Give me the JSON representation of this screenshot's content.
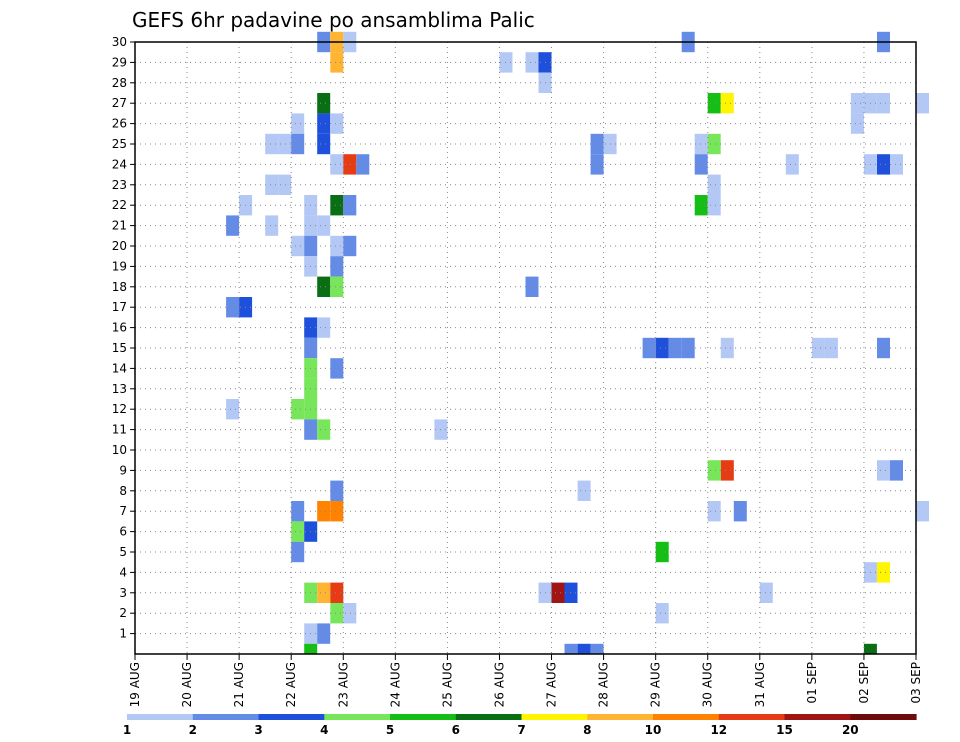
{
  "chart_data": {
    "type": "heatmap",
    "title": "GEFS 6hr padavine po ansamblima Palic",
    "xlabel": "",
    "ylabel": "",
    "x_tick_labels": [
      "19 AUG",
      "20 AUG",
      "21 AUG",
      "22 AUG",
      "23 AUG",
      "24 AUG",
      "25 AUG",
      "26 AUG",
      "27 AUG",
      "28 AUG",
      "29 AUG",
      "30 AUG",
      "31 AUG",
      "01 SEP",
      "02 SEP",
      "03 SEP"
    ],
    "y_tick_labels": [
      "1",
      "2",
      "3",
      "4",
      "5",
      "6",
      "7",
      "8",
      "9",
      "10",
      "11",
      "12",
      "13",
      "14",
      "15",
      "16",
      "17",
      "18",
      "19",
      "20",
      "21",
      "22",
      "23",
      "24",
      "25",
      "26",
      "27",
      "28",
      "29",
      "30"
    ],
    "ylim": [
      0,
      30
    ],
    "grid": true,
    "colorbar": {
      "labels": [
        "1",
        "2",
        "3",
        "4",
        "5",
        "6",
        "7",
        "8",
        "10",
        "12",
        "15",
        "20"
      ],
      "colors": [
        "#b4c8f5",
        "#648ce6",
        "#1e50dc",
        "#78e65a",
        "#14be14",
        "#0a6e14",
        "#fff500",
        "#ffb432",
        "#ff8200",
        "#e63c14",
        "#a01414",
        "#6e0a0a"
      ]
    },
    "cells": [
      {
        "member": 30,
        "time": "22 AUG 12Z",
        "value": 2
      },
      {
        "member": 30,
        "time": "22 AUG 18Z",
        "value": 8
      },
      {
        "member": 30,
        "time": "23 AUG 00Z",
        "value": 1
      },
      {
        "member": 30,
        "time": "29 AUG 12Z",
        "value": 2
      },
      {
        "member": 30,
        "time": "02 SEP 06Z",
        "value": 2
      },
      {
        "member": 29,
        "time": "22 AUG 18Z",
        "value": 8
      },
      {
        "member": 29,
        "time": "26 AUG 00Z",
        "value": 1
      },
      {
        "member": 29,
        "time": "26 AUG 12Z",
        "value": 1
      },
      {
        "member": 29,
        "time": "26 AUG 18Z",
        "value": 3
      },
      {
        "member": 28,
        "time": "26 AUG 18Z",
        "value": 1
      },
      {
        "member": 27,
        "time": "22 AUG 12Z",
        "value": 6
      },
      {
        "member": 27,
        "time": "30 AUG 00Z",
        "value": 5
      },
      {
        "member": 27,
        "time": "30 AUG 06Z",
        "value": 7
      },
      {
        "member": 27,
        "time": "01 SEP 18Z",
        "value": 1
      },
      {
        "member": 27,
        "time": "02 SEP 00Z",
        "value": 1
      },
      {
        "member": 27,
        "time": "02 SEP 06Z",
        "value": 1
      },
      {
        "member": 27,
        "time": "03 SEP 00Z",
        "value": 1
      },
      {
        "member": 26,
        "time": "22 AUG 00Z",
        "value": 1
      },
      {
        "member": 26,
        "time": "22 AUG 12Z",
        "value": 3
      },
      {
        "member": 26,
        "time": "22 AUG 18Z",
        "value": 1
      },
      {
        "member": 26,
        "time": "01 SEP 18Z",
        "value": 1
      },
      {
        "member": 25,
        "time": "21 AUG 12Z",
        "value": 1
      },
      {
        "member": 25,
        "time": "21 AUG 18Z",
        "value": 1
      },
      {
        "member": 25,
        "time": "22 AUG 00Z",
        "value": 2
      },
      {
        "member": 25,
        "time": "22 AUG 12Z",
        "value": 3
      },
      {
        "member": 25,
        "time": "27 AUG 18Z",
        "value": 2
      },
      {
        "member": 25,
        "time": "28 AUG 00Z",
        "value": 1
      },
      {
        "member": 25,
        "time": "29 AUG 18Z",
        "value": 1
      },
      {
        "member": 25,
        "time": "29 AUG 18Z+6",
        "value": 4
      },
      {
        "member": 24,
        "time": "22 AUG 18Z",
        "value": 1
      },
      {
        "member": 24,
        "time": "23 AUG 00Z",
        "value": 12
      },
      {
        "member": 24,
        "time": "23 AUG 06Z",
        "value": 2
      },
      {
        "member": 24,
        "time": "27 AUG 18Z",
        "value": 2
      },
      {
        "member": 24,
        "time": "29 AUG 18Z",
        "value": 2
      },
      {
        "member": 24,
        "time": "31 AUG 12Z",
        "value": 1
      },
      {
        "member": 24,
        "time": "02 SEP 00Z",
        "value": 1
      },
      {
        "member": 24,
        "time": "02 SEP 06Z",
        "value": 3
      },
      {
        "member": 24,
        "time": "02 SEP 12Z",
        "value": 1
      },
      {
        "member": 23,
        "time": "21 AUG 12Z",
        "value": 1
      },
      {
        "member": 23,
        "time": "21 AUG 18Z",
        "value": 1
      },
      {
        "member": 23,
        "time": "30 AUG 00Z",
        "value": 1
      },
      {
        "member": 22,
        "time": "21 AUG 00Z",
        "value": 1
      },
      {
        "member": 22,
        "time": "22 AUG 06Z",
        "value": 1
      },
      {
        "member": 22,
        "time": "22 AUG 18Z",
        "value": 6
      },
      {
        "member": 22,
        "time": "23 AUG 00Z",
        "value": 2
      },
      {
        "member": 22,
        "time": "29 AUG 18Z",
        "value": 5
      },
      {
        "member": 22,
        "time": "30 AUG 00Z",
        "value": 1
      },
      {
        "member": 21,
        "time": "20 AUG 18Z",
        "value": 2
      },
      {
        "member": 21,
        "time": "21 AUG 12Z",
        "value": 1
      },
      {
        "member": 21,
        "time": "22 AUG 06Z",
        "value": 1
      },
      {
        "member": 21,
        "time": "22 AUG 12Z",
        "value": 1
      },
      {
        "member": 20,
        "time": "22 AUG 00Z",
        "value": 1
      },
      {
        "member": 20,
        "time": "22 AUG 06Z",
        "value": 2
      },
      {
        "member": 20,
        "time": "22 AUG 18Z",
        "value": 1
      },
      {
        "member": 20,
        "time": "23 AUG 00Z",
        "value": 2
      },
      {
        "member": 19,
        "time": "22 AUG 06Z",
        "value": 1
      },
      {
        "member": 19,
        "time": "22 AUG 18Z",
        "value": 2
      },
      {
        "member": 18,
        "time": "22 AUG 12Z",
        "value": 6
      },
      {
        "member": 18,
        "time": "22 AUG 18Z",
        "value": 4
      },
      {
        "member": 18,
        "time": "26 AUG 12Z",
        "value": 2
      },
      {
        "member": 17,
        "time": "20 AUG 18Z",
        "value": 2
      },
      {
        "member": 17,
        "time": "21 AUG 00Z",
        "value": 3
      },
      {
        "member": 16,
        "time": "22 AUG 06Z",
        "value": 3
      },
      {
        "member": 16,
        "time": "22 AUG 12Z",
        "value": 1
      },
      {
        "member": 15,
        "time": "22 AUG 06Z",
        "value": 2
      },
      {
        "member": 15,
        "time": "28 AUG 18Z",
        "value": 2
      },
      {
        "member": 15,
        "time": "29 AUG 00Z",
        "value": 3
      },
      {
        "member": 15,
        "time": "29 AUG 06Z",
        "value": 2
      },
      {
        "member": 15,
        "time": "29 AUG 12Z",
        "value": 2
      },
      {
        "member": 15,
        "time": "30 AUG 06Z",
        "value": 1
      },
      {
        "member": 15,
        "time": "01 SEP 00Z",
        "value": 1
      },
      {
        "member": 15,
        "time": "01 SEP 06Z",
        "value": 1
      },
      {
        "member": 15,
        "time": "02 SEP 06Z",
        "value": 2
      },
      {
        "member": 14,
        "time": "22 AUG 06Z",
        "value": 4
      },
      {
        "member": 14,
        "time": "22 AUG 18Z",
        "value": 2
      },
      {
        "member": 13,
        "time": "22 AUG 06Z",
        "value": 4
      },
      {
        "member": 12,
        "time": "20 AUG 18Z",
        "value": 1
      },
      {
        "member": 12,
        "time": "22 AUG 00Z",
        "value": 4
      },
      {
        "member": 12,
        "time": "22 AUG 06Z",
        "value": 4
      },
      {
        "member": 11,
        "time": "22 AUG 06Z",
        "value": 2
      },
      {
        "member": 11,
        "time": "22 AUG 12Z",
        "value": 4
      },
      {
        "member": 11,
        "time": "24 AUG 18Z",
        "value": 1
      },
      {
        "member": 9,
        "time": "30 AUG 00Z",
        "value": 4
      },
      {
        "member": 9,
        "time": "30 AUG 06Z",
        "value": 12
      },
      {
        "member": 9,
        "time": "02 SEP 06Z",
        "value": 1
      },
      {
        "member": 9,
        "time": "02 SEP 12Z",
        "value": 2
      },
      {
        "member": 8,
        "time": "22 AUG 18Z",
        "value": 2
      },
      {
        "member": 8,
        "time": "27 AUG 12Z",
        "value": 1
      },
      {
        "member": 7,
        "time": "22 AUG 00Z",
        "value": 2
      },
      {
        "member": 7,
        "time": "22 AUG 12Z",
        "value": 10
      },
      {
        "member": 7,
        "time": "22 AUG 18Z",
        "value": 10
      },
      {
        "member": 7,
        "time": "30 AUG 00Z",
        "value": 1
      },
      {
        "member": 7,
        "time": "30 AUG 12Z",
        "value": 2
      },
      {
        "member": 7,
        "time": "03 SEP 00Z",
        "value": 1
      },
      {
        "member": 6,
        "time": "22 AUG 00Z",
        "value": 4
      },
      {
        "member": 6,
        "time": "22 AUG 06Z",
        "value": 3
      },
      {
        "member": 5,
        "time": "22 AUG 00Z",
        "value": 2
      },
      {
        "member": 5,
        "time": "29 AUG 00Z",
        "value": 5
      },
      {
        "member": 4,
        "time": "02 SEP 00Z",
        "value": 1
      },
      {
        "member": 4,
        "time": "02 SEP 06Z",
        "value": 7
      },
      {
        "member": 3,
        "time": "22 AUG 06Z",
        "value": 4
      },
      {
        "member": 3,
        "time": "22 AUG 12Z",
        "value": 8
      },
      {
        "member": 3,
        "time": "22 AUG 18Z",
        "value": 12
      },
      {
        "member": 3,
        "time": "26 AUG 18Z",
        "value": 1
      },
      {
        "member": 3,
        "time": "27 AUG 00Z",
        "value": 15
      },
      {
        "member": 3,
        "time": "27 AUG 06Z",
        "value": 3
      },
      {
        "member": 3,
        "time": "31 AUG 00Z",
        "value": 1
      },
      {
        "member": 2,
        "time": "22 AUG 18Z",
        "value": 4
      },
      {
        "member": 2,
        "time": "23 AUG 00Z",
        "value": 1
      },
      {
        "member": 2,
        "time": "29 AUG 00Z",
        "value": 1
      },
      {
        "member": 1,
        "time": "22 AUG 06Z",
        "value": 1
      },
      {
        "member": 1,
        "time": "22 AUG 12Z",
        "value": 2
      },
      {
        "member": 0,
        "time": "22 AUG 06Z",
        "value": 5
      },
      {
        "member": 0,
        "time": "27 AUG 06Z",
        "value": 2
      },
      {
        "member": 0,
        "time": "27 AUG 12Z",
        "value": 3
      },
      {
        "member": 0,
        "time": "27 AUG 18Z",
        "value": 2
      },
      {
        "member": 0,
        "time": "02 SEP 00Z",
        "value": 6
      }
    ]
  }
}
